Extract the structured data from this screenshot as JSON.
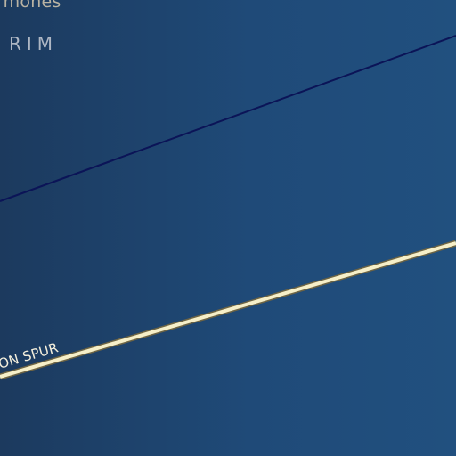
{
  "map": {
    "background_color": "#1f4a78",
    "labels": {
      "place_partial": "rmones",
      "area": "RIM",
      "road": "ON SPUR"
    },
    "line_colors": {
      "boundary": "#0b1457",
      "road_fill": "#f6efc8",
      "road_casing": "#6d6444"
    }
  }
}
